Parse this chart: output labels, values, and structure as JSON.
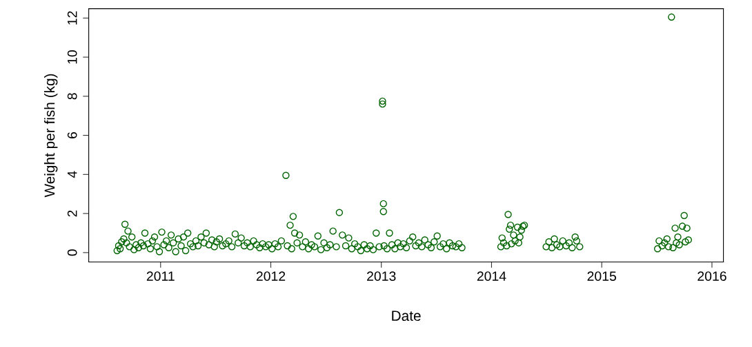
{
  "chart_data": {
    "type": "scatter",
    "xlabel": "Date",
    "ylabel": "Weight per fish (kg)",
    "xlim": [
      "2010-05-08",
      "2016-02-08"
    ],
    "ylim": [
      -0.48,
      12.48
    ],
    "xticks": [
      {
        "value": "2011-01-01",
        "label": "2011"
      },
      {
        "value": "2012-01-01",
        "label": "2012"
      },
      {
        "value": "2013-01-01",
        "label": "2013"
      },
      {
        "value": "2014-01-01",
        "label": "2014"
      },
      {
        "value": "2015-01-01",
        "label": "2015"
      },
      {
        "value": "2016-01-01",
        "label": "2016"
      }
    ],
    "yticks": [
      0,
      2,
      4,
      6,
      8,
      10,
      12
    ],
    "grid": false,
    "marker": "circle",
    "series": [
      {
        "color": "#006400",
        "x": [
          "2010-08-10",
          "2010-08-15",
          "2010-08-20",
          "2010-08-25",
          "2010-09-01",
          "2010-09-05",
          "2010-09-10",
          "2010-09-15",
          "2010-09-20",
          "2010-09-28",
          "2010-10-05",
          "2010-10-12",
          "2010-10-20",
          "2010-10-28",
          "2010-11-05",
          "2010-11-10",
          "2010-11-20",
          "2010-11-28",
          "2010-12-05",
          "2010-12-12",
          "2010-12-20",
          "2010-12-28",
          "2011-01-05",
          "2011-01-12",
          "2011-01-20",
          "2011-01-28",
          "2011-02-05",
          "2011-02-12",
          "2011-02-20",
          "2011-03-01",
          "2011-03-10",
          "2011-03-18",
          "2011-03-25",
          "2011-04-01",
          "2011-04-10",
          "2011-04-18",
          "2011-04-28",
          "2011-05-05",
          "2011-05-15",
          "2011-05-25",
          "2011-06-01",
          "2011-06-10",
          "2011-06-20",
          "2011-06-28",
          "2011-07-05",
          "2011-07-15",
          "2011-07-25",
          "2011-08-05",
          "2011-08-15",
          "2011-08-25",
          "2011-09-05",
          "2011-09-15",
          "2011-09-25",
          "2011-10-05",
          "2011-10-15",
          "2011-10-25",
          "2011-11-05",
          "2011-11-15",
          "2011-11-25",
          "2011-12-05",
          "2011-12-15",
          "2011-12-25",
          "2012-01-05",
          "2012-01-15",
          "2012-01-25",
          "2012-02-05",
          "2012-02-20",
          "2012-02-25",
          "2012-03-05",
          "2012-03-10",
          "2012-03-15",
          "2012-03-20",
          "2012-03-28",
          "2012-04-05",
          "2012-04-15",
          "2012-04-25",
          "2012-05-05",
          "2012-05-15",
          "2012-05-25",
          "2012-06-05",
          "2012-06-15",
          "2012-06-25",
          "2012-07-05",
          "2012-07-15",
          "2012-07-25",
          "2012-08-05",
          "2012-08-15",
          "2012-08-25",
          "2012-09-05",
          "2012-09-15",
          "2012-09-25",
          "2012-10-05",
          "2012-10-15",
          "2012-10-25",
          "2012-11-05",
          "2012-11-15",
          "2012-11-25",
          "2012-12-05",
          "2012-12-15",
          "2012-12-25",
          "2013-01-05",
          "2013-01-05",
          "2013-01-08",
          "2013-01-08",
          "2013-01-10",
          "2013-01-20",
          "2013-01-28",
          "2013-02-05",
          "2013-02-15",
          "2013-02-25",
          "2013-03-05",
          "2013-03-15",
          "2013-03-25",
          "2013-04-05",
          "2013-04-15",
          "2013-04-25",
          "2013-05-05",
          "2013-05-15",
          "2013-05-25",
          "2013-06-05",
          "2013-06-15",
          "2013-06-25",
          "2013-07-05",
          "2013-07-15",
          "2013-07-25",
          "2013-08-05",
          "2013-08-15",
          "2013-08-25",
          "2013-09-05",
          "2013-09-15",
          "2013-09-25",
          "2014-02-01",
          "2014-02-05",
          "2014-02-10",
          "2014-02-20",
          "2014-02-25",
          "2014-03-01",
          "2014-03-05",
          "2014-03-08",
          "2014-03-15",
          "2014-03-20",
          "2014-03-28",
          "2014-04-01",
          "2014-04-05",
          "2014-04-10",
          "2014-04-15",
          "2014-04-20",
          "2014-07-01",
          "2014-07-10",
          "2014-07-20",
          "2014-07-28",
          "2014-08-05",
          "2014-08-15",
          "2014-08-25",
          "2014-09-05",
          "2014-09-15",
          "2014-09-25",
          "2014-10-05",
          "2014-10-10",
          "2014-10-20",
          "2015-07-05",
          "2015-07-10",
          "2015-07-20",
          "2015-07-28",
          "2015-08-05",
          "2015-08-10",
          "2015-08-20",
          "2015-08-25",
          "2015-09-01",
          "2015-09-05",
          "2015-09-10",
          "2015-09-15",
          "2015-09-25",
          "2015-10-01",
          "2015-10-05",
          "2015-10-10",
          "2015-10-15"
        ],
        "values": [
          0.1,
          0.35,
          0.2,
          0.55,
          0.7,
          1.45,
          0.5,
          1.1,
          0.3,
          0.8,
          0.15,
          0.4,
          0.25,
          0.5,
          0.35,
          1.0,
          0.45,
          0.2,
          0.6,
          0.8,
          0.3,
          0.05,
          1.05,
          0.4,
          0.6,
          0.25,
          0.9,
          0.5,
          0.05,
          0.7,
          0.35,
          0.8,
          0.1,
          1.0,
          0.45,
          0.3,
          0.6,
          0.35,
          0.8,
          0.5,
          1.0,
          0.4,
          0.65,
          0.3,
          0.55,
          0.7,
          0.35,
          0.45,
          0.6,
          0.3,
          0.95,
          0.5,
          0.75,
          0.35,
          0.5,
          0.3,
          0.6,
          0.4,
          0.25,
          0.45,
          0.3,
          0.4,
          0.2,
          0.45,
          0.3,
          0.6,
          3.95,
          0.35,
          1.4,
          0.2,
          1.85,
          1.0,
          0.5,
          0.9,
          0.3,
          0.55,
          0.2,
          0.4,
          0.3,
          0.85,
          0.15,
          0.5,
          0.25,
          0.4,
          1.1,
          0.3,
          2.05,
          0.9,
          0.35,
          0.75,
          0.2,
          0.45,
          0.3,
          0.1,
          0.4,
          0.2,
          0.35,
          0.15,
          1.0,
          0.3,
          7.75,
          7.6,
          2.5,
          2.1,
          0.35,
          0.2,
          1.0,
          0.4,
          0.2,
          0.5,
          0.3,
          0.45,
          0.25,
          0.6,
          0.8,
          0.35,
          0.5,
          0.3,
          0.65,
          0.4,
          0.25,
          0.55,
          0.85,
          0.3,
          0.45,
          0.2,
          0.5,
          0.35,
          0.3,
          0.45,
          0.25,
          0.3,
          0.75,
          0.5,
          0.35,
          1.95,
          1.2,
          1.4,
          0.45,
          0.9,
          0.6,
          1.3,
          0.5,
          0.8,
          1.15,
          1.35,
          1.4,
          0.3,
          0.55,
          0.25,
          0.7,
          0.4,
          0.3,
          0.6,
          0.35,
          0.5,
          0.25,
          0.8,
          0.6,
          0.3,
          0.2,
          0.6,
          0.35,
          0.5,
          0.7,
          0.3,
          12.05,
          0.25,
          1.25,
          0.5,
          0.8,
          0.4,
          1.35,
          1.9,
          0.55,
          1.25,
          0.65
        ]
      }
    ]
  }
}
